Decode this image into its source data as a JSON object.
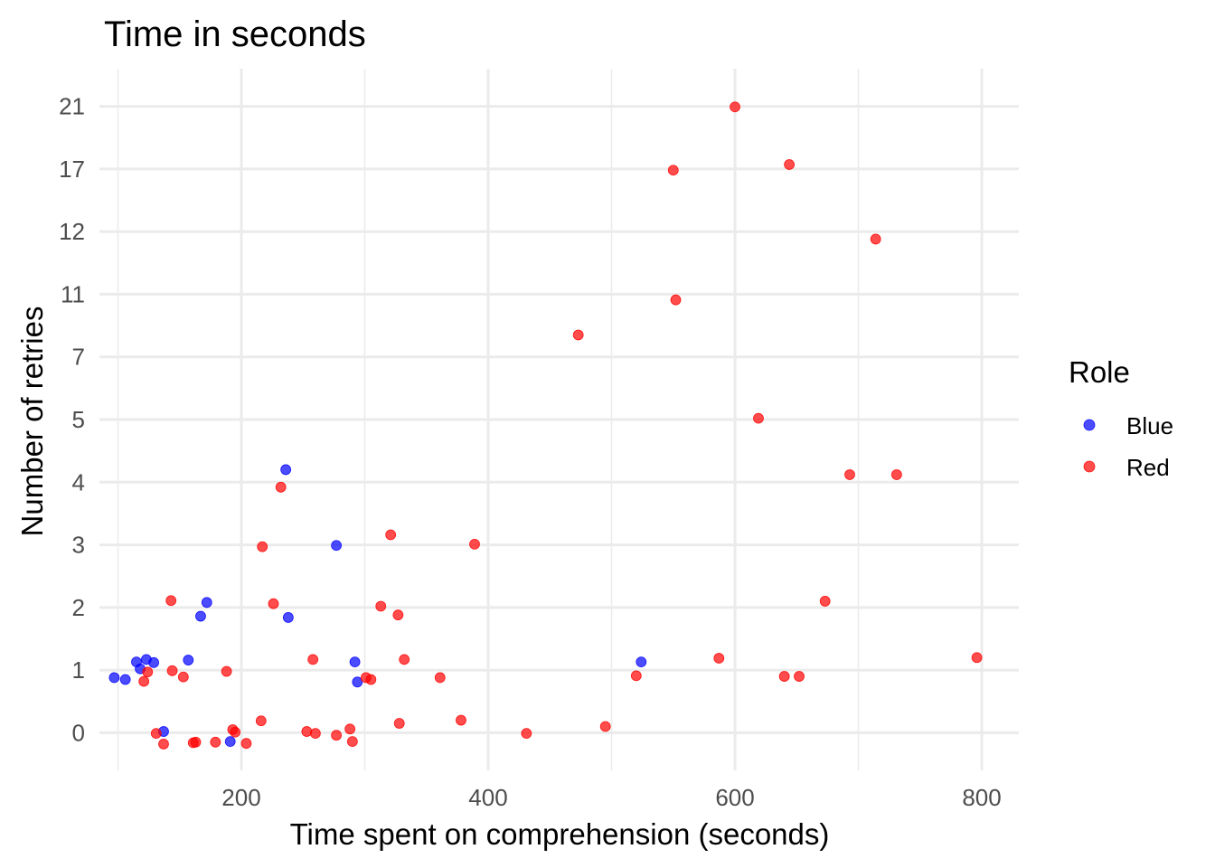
{
  "chart_data": {
    "type": "scatter",
    "title": "Time in seconds",
    "xlabel": "Time spent on comprehension (seconds)",
    "ylabel": "Number of retries",
    "x_ticks": [
      200,
      400,
      600,
      800
    ],
    "xlim": [
      85,
      830
    ],
    "y_categories": [
      "0",
      "1",
      "2",
      "3",
      "4",
      "5",
      "7",
      "11",
      "12",
      "17",
      "21"
    ],
    "ylim": [
      -0.6,
      10.6
    ],
    "grid": true,
    "legend": {
      "title": "Role",
      "position": "right"
    },
    "series": [
      {
        "name": "Blue",
        "color": "#0000ff",
        "points": [
          {
            "x": 97,
            "y": 0.88
          },
          {
            "x": 106,
            "y": 0.85
          },
          {
            "x": 115,
            "y": 1.13
          },
          {
            "x": 118,
            "y": 1.02
          },
          {
            "x": 123,
            "y": 1.17
          },
          {
            "x": 129,
            "y": 1.12
          },
          {
            "x": 137,
            "y": 0.02
          },
          {
            "x": 157,
            "y": 1.16
          },
          {
            "x": 167,
            "y": 1.86
          },
          {
            "x": 172,
            "y": 2.08
          },
          {
            "x": 191,
            "y": -0.14
          },
          {
            "x": 236,
            "y": 4.2
          },
          {
            "x": 238,
            "y": 1.84
          },
          {
            "x": 277,
            "y": 2.99
          },
          {
            "x": 292,
            "y": 1.13
          },
          {
            "x": 294,
            "y": 0.81
          },
          {
            "x": 524,
            "y": 1.13
          }
        ]
      },
      {
        "name": "Red",
        "color": "#ff0000",
        "points": [
          {
            "x": 121,
            "y": 0.82
          },
          {
            "x": 124,
            "y": 0.97
          },
          {
            "x": 131,
            "y": -0.01
          },
          {
            "x": 137,
            "y": -0.18
          },
          {
            "x": 143,
            "y": 2.11
          },
          {
            "x": 144,
            "y": 0.99
          },
          {
            "x": 153,
            "y": 0.89
          },
          {
            "x": 161,
            "y": -0.16
          },
          {
            "x": 163,
            "y": -0.15
          },
          {
            "x": 179,
            "y": -0.15
          },
          {
            "x": 188,
            "y": 0.98
          },
          {
            "x": 193,
            "y": 0.05
          },
          {
            "x": 195,
            "y": 0.01
          },
          {
            "x": 204,
            "y": -0.17
          },
          {
            "x": 216,
            "y": 0.19
          },
          {
            "x": 217,
            "y": 2.97
          },
          {
            "x": 226,
            "y": 2.06
          },
          {
            "x": 232,
            "y": 3.92
          },
          {
            "x": 253,
            "y": 0.02
          },
          {
            "x": 258,
            "y": 1.17
          },
          {
            "x": 260,
            "y": -0.01
          },
          {
            "x": 277,
            "y": -0.04
          },
          {
            "x": 288,
            "y": 0.06
          },
          {
            "x": 290,
            "y": -0.14
          },
          {
            "x": 301,
            "y": 0.88
          },
          {
            "x": 305,
            "y": 0.85
          },
          {
            "x": 313,
            "y": 2.02
          },
          {
            "x": 321,
            "y": 3.16
          },
          {
            "x": 327,
            "y": 1.88
          },
          {
            "x": 328,
            "y": 0.15
          },
          {
            "x": 332,
            "y": 1.17
          },
          {
            "x": 361,
            "y": 0.88
          },
          {
            "x": 378,
            "y": 0.2
          },
          {
            "x": 389,
            "y": 3.01
          },
          {
            "x": 431,
            "y": -0.01
          },
          {
            "x": 473,
            "y": 6.35
          },
          {
            "x": 495,
            "y": 0.1
          },
          {
            "x": 520,
            "y": 0.91
          },
          {
            "x": 550,
            "y": 8.98
          },
          {
            "x": 552,
            "y": 6.91
          },
          {
            "x": 587,
            "y": 1.19
          },
          {
            "x": 600,
            "y": 9.99
          },
          {
            "x": 619,
            "y": 5.02
          },
          {
            "x": 640,
            "y": 0.9
          },
          {
            "x": 644,
            "y": 9.07
          },
          {
            "x": 652,
            "y": 0.9
          },
          {
            "x": 673,
            "y": 2.1
          },
          {
            "x": 693,
            "y": 4.12
          },
          {
            "x": 714,
            "y": 7.88
          },
          {
            "x": 731,
            "y": 4.12
          },
          {
            "x": 796,
            "y": 1.2
          }
        ]
      }
    ]
  }
}
